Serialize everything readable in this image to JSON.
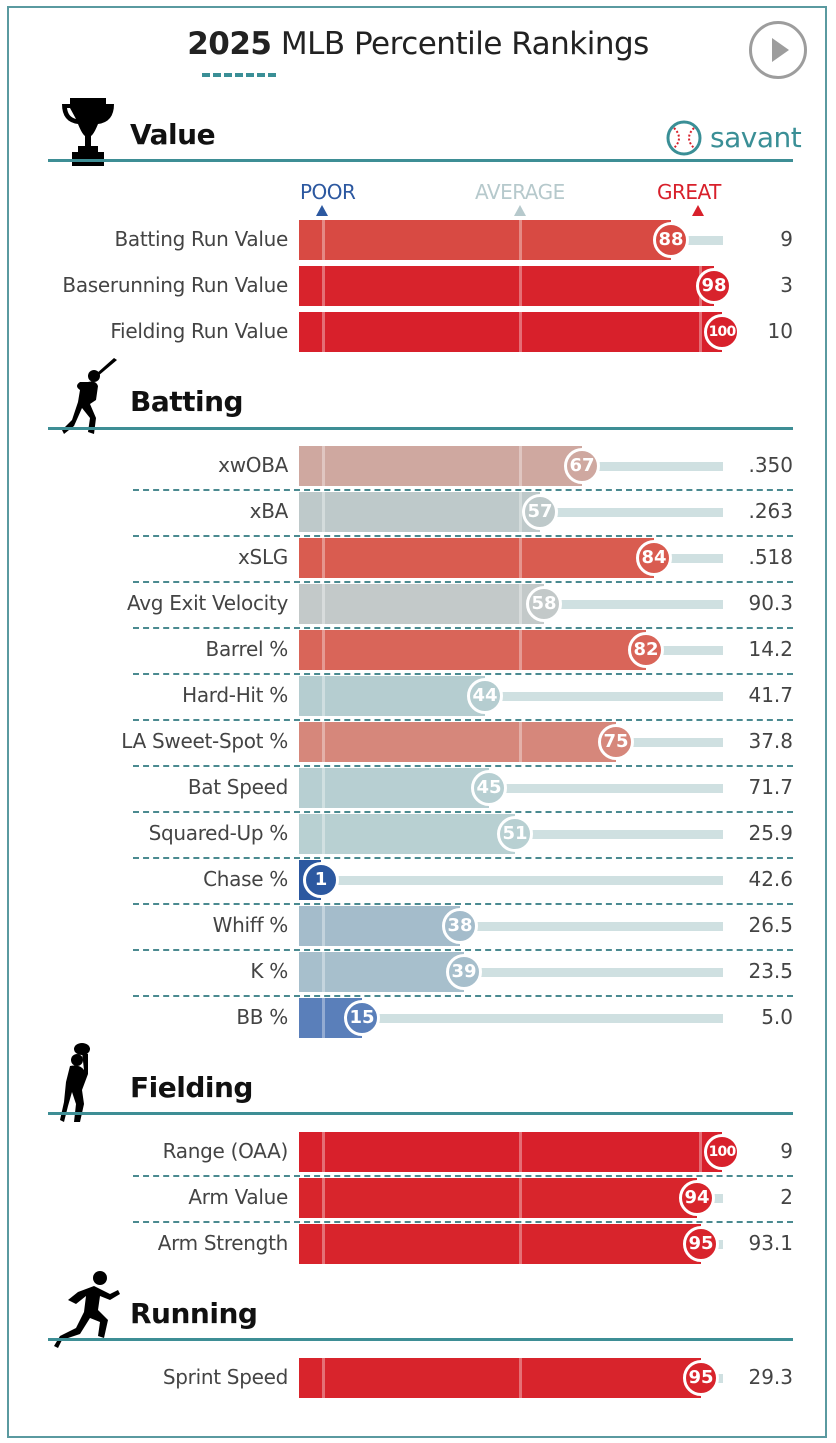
{
  "header": {
    "title_year": "2025",
    "title_rest": "MLB Percentile Rankings",
    "brand": "savant",
    "play_icon": "play-circle-icon"
  },
  "scale": {
    "poor": "POOR",
    "average": "AVERAGE",
    "great": "GREAT"
  },
  "colors": {
    "poor": "#2c58a0",
    "average": "#b6c9cc",
    "great": "#d8202b",
    "accent": "#3a8f96",
    "track": "#cfe0e1"
  },
  "chart_data": {
    "type": "bar",
    "title": "2025 MLB Percentile Rankings",
    "xlim": [
      0,
      100
    ],
    "sections": [
      {
        "name": "Value",
        "icon": "trophy-icon",
        "rows": [
          {
            "label": "Batting Run Value",
            "percentile": 88,
            "value": "9",
            "color": "#d84a43"
          },
          {
            "label": "Baserunning Run Value",
            "percentile": 98,
            "value": "3",
            "color": "#d8232c"
          },
          {
            "label": "Fielding Run Value",
            "percentile": 100,
            "value": "10",
            "color": "#d8202b"
          }
        ]
      },
      {
        "name": "Batting",
        "icon": "batter-icon",
        "rows": [
          {
            "label": "xwOBA",
            "percentile": 67,
            "value": ".350",
            "color": "#cfa8a0"
          },
          {
            "label": "xBA",
            "percentile": 57,
            "value": ".263",
            "color": "#bec9ca"
          },
          {
            "label": "xSLG",
            "percentile": 84,
            "value": ".518",
            "color": "#d95c50"
          },
          {
            "label": "Avg Exit Velocity",
            "percentile": 58,
            "value": "90.3",
            "color": "#c3c9c9"
          },
          {
            "label": "Barrel %",
            "percentile": 82,
            "value": "14.2",
            "color": "#d96559"
          },
          {
            "label": "Hard-Hit %",
            "percentile": 44,
            "value": "41.7",
            "color": "#b5cdd0"
          },
          {
            "label": "LA Sweet-Spot %",
            "percentile": 75,
            "value": "37.8",
            "color": "#d6877b"
          },
          {
            "label": "Bat Speed",
            "percentile": 45,
            "value": "71.7",
            "color": "#b7cfd2"
          },
          {
            "label": "Squared-Up %",
            "percentile": 51,
            "value": "25.9",
            "color": "#b8d0d2"
          },
          {
            "label": "Chase %",
            "percentile": 1,
            "value": "42.6",
            "color": "#2c58a0"
          },
          {
            "label": "Whiff %",
            "percentile": 38,
            "value": "26.5",
            "color": "#a4bccb"
          },
          {
            "label": "K %",
            "percentile": 39,
            "value": "23.5",
            "color": "#a7bfcc"
          },
          {
            "label": "BB %",
            "percentile": 15,
            "value": "5.0",
            "color": "#5a7fba"
          }
        ]
      },
      {
        "name": "Fielding",
        "icon": "fielder-icon",
        "rows": [
          {
            "label": "Range (OAA)",
            "percentile": 100,
            "value": "9",
            "color": "#d8202b"
          },
          {
            "label": "Arm Value",
            "percentile": 94,
            "value": "2",
            "color": "#d8252c"
          },
          {
            "label": "Arm Strength",
            "percentile": 95,
            "value": "93.1",
            "color": "#d8242c"
          }
        ]
      },
      {
        "name": "Running",
        "icon": "runner-icon",
        "rows": [
          {
            "label": "Sprint Speed",
            "percentile": 95,
            "value": "29.3",
            "color": "#d8242c"
          }
        ]
      }
    ]
  }
}
